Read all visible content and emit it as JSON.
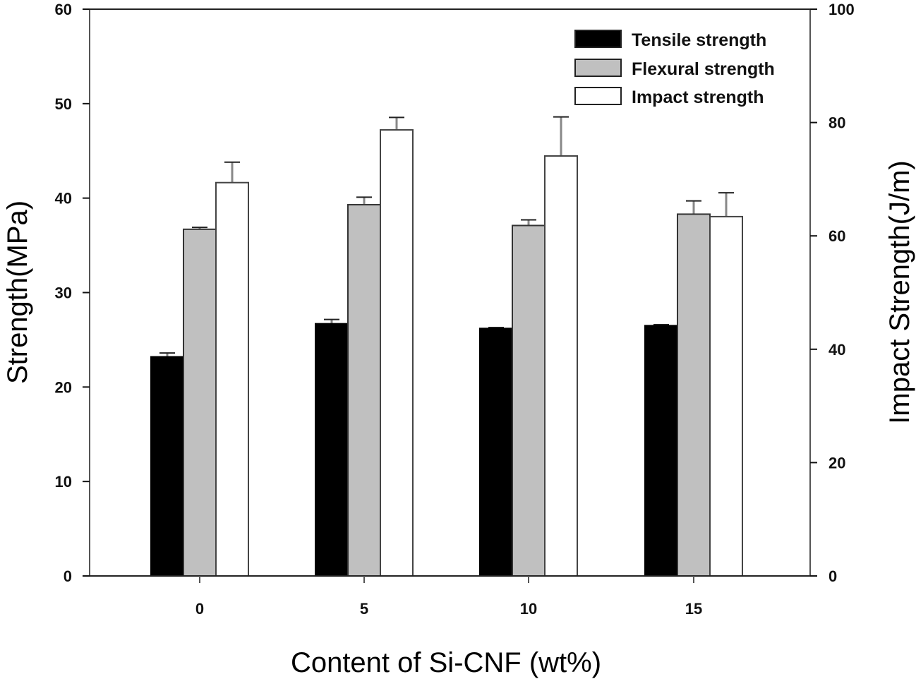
{
  "chart_data": {
    "type": "bar",
    "title": "",
    "xlabel": "Content of Si-CNF (wt%)",
    "ylabel": "Strength(MPa)",
    "y2label": "Impact Strength(J/m)",
    "categories": [
      "0",
      "5",
      "10",
      "15"
    ],
    "ylim": [
      0,
      60
    ],
    "y2lim": [
      0,
      100
    ],
    "yticks": [
      0,
      10,
      20,
      30,
      40,
      50,
      60
    ],
    "y2ticks": [
      0,
      20,
      40,
      60,
      80,
      100
    ],
    "grid": false,
    "legend_position": "top-right",
    "series": [
      {
        "name": "Tensile strength",
        "axis": "left",
        "color": "#000000",
        "values": [
          23.2,
          26.7,
          26.2,
          26.5
        ],
        "errors": [
          0.4,
          0.45,
          0.1,
          0.1
        ]
      },
      {
        "name": "Flexural strength",
        "axis": "left",
        "color": "#c0c0c0",
        "values": [
          36.7,
          39.3,
          37.1,
          38.3
        ],
        "errors": [
          0.2,
          0.8,
          0.6,
          1.4
        ]
      },
      {
        "name": "Impact strength",
        "axis": "right",
        "color": "#ffffff",
        "values": [
          69.4,
          78.7,
          74.1,
          63.4
        ],
        "errors": [
          3.6,
          2.2,
          6.9,
          4.2
        ]
      }
    ]
  }
}
